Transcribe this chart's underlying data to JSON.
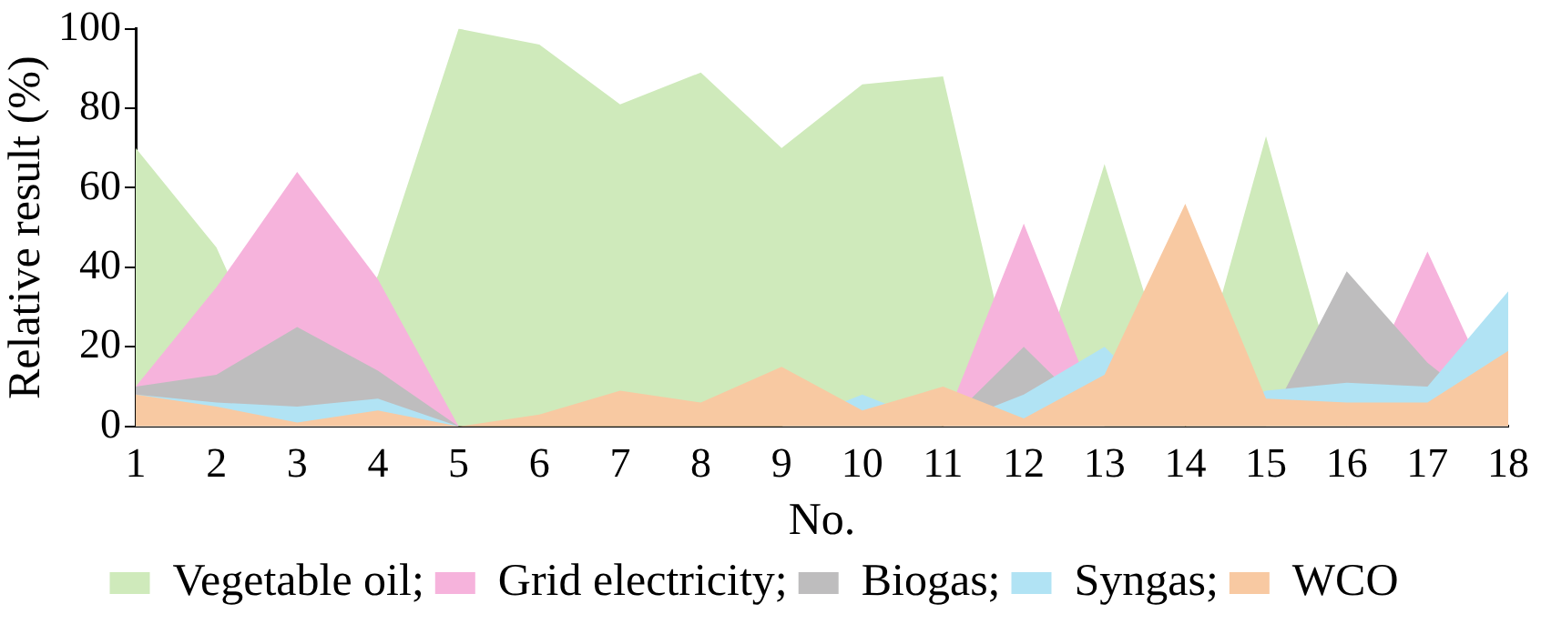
{
  "chart_data": {
    "type": "area",
    "xlabel": "No.",
    "ylabel": "Relative result (%)",
    "x": [
      1,
      2,
      3,
      4,
      5,
      6,
      7,
      8,
      9,
      10,
      11,
      12,
      13,
      14,
      15,
      16,
      17,
      18
    ],
    "xlim": [
      1,
      18
    ],
    "xticks": [
      1,
      2,
      3,
      4,
      5,
      6,
      7,
      8,
      9,
      10,
      11,
      12,
      13,
      14,
      15,
      16,
      17,
      18
    ],
    "ylim": [
      0,
      100
    ],
    "yticks": [
      0,
      20,
      40,
      60,
      80,
      100
    ],
    "grid": false,
    "legend": "bottom",
    "series": [
      {
        "name": "Vegetable oil;",
        "color": "#cfeabb",
        "values": [
          70,
          45,
          0,
          38,
          100,
          96,
          81,
          89,
          70,
          86,
          88,
          0,
          66,
          0,
          73,
          0,
          0,
          0
        ]
      },
      {
        "name": "Grid electricity;",
        "color": "#f6b3dc",
        "values": [
          10,
          35,
          64,
          37,
          0,
          0,
          0,
          0,
          0,
          0,
          0,
          51,
          0,
          0,
          0,
          0,
          44,
          0
        ]
      },
      {
        "name": "Biogas;",
        "color": "#bebdbe",
        "values": [
          10,
          13,
          25,
          14,
          0,
          0,
          0,
          0,
          0,
          0,
          0,
          20,
          0,
          0,
          0,
          39,
          16,
          0
        ]
      },
      {
        "name": "Syngas;",
        "color": "#b1e3f4",
        "values": [
          8,
          6,
          5,
          7,
          0,
          0,
          0,
          0,
          0,
          8,
          0,
          8,
          20,
          0,
          9,
          11,
          10,
          34
        ]
      },
      {
        "name": "WCO",
        "color": "#f8c9a2",
        "values": [
          8,
          5,
          1,
          4,
          0,
          3,
          9,
          6,
          15,
          4,
          10,
          2,
          13,
          56,
          7,
          6,
          6,
          19
        ]
      }
    ]
  }
}
